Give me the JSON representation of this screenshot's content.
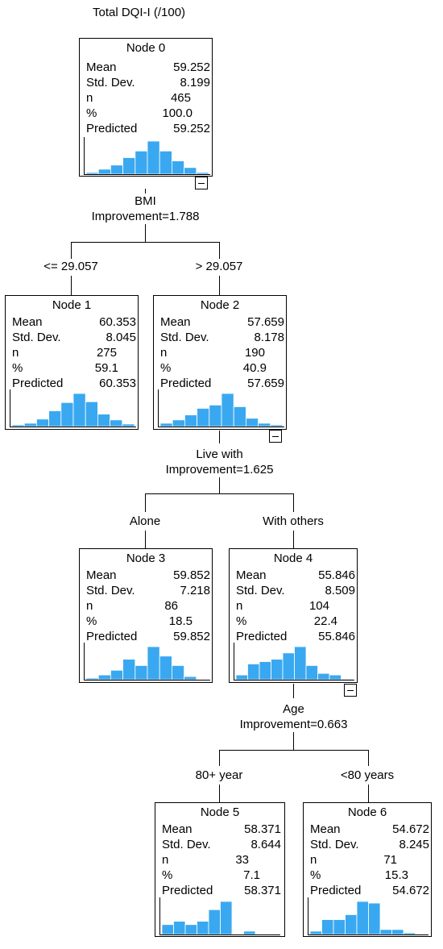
{
  "header": {
    "title": "Total DQI-I (/100)"
  },
  "labels": {
    "mean": "Mean",
    "sd": "Std. Dev.",
    "n": "n",
    "pct": "%",
    "pred": "Predicted"
  },
  "hist_color": "#3aa8f0",
  "nodes": [
    {
      "title": "Node 0",
      "mean": "59.252",
      "sd": "8.199",
      "n": "465",
      "pct": "100.0",
      "pred": "59.252",
      "hist": [
        2,
        6,
        11,
        20,
        28,
        40,
        28,
        16,
        8,
        2
      ]
    },
    {
      "title": "Node 1",
      "mean": "60.353",
      "sd": "8.045",
      "n": "275",
      "pct": "59.1",
      "pred": "60.353",
      "hist": [
        2,
        4,
        9,
        19,
        29,
        40,
        30,
        15,
        8,
        3
      ]
    },
    {
      "title": "Node 2",
      "mean": "57.659",
      "sd": "8.178",
      "n": "190",
      "pct": "40.9",
      "pred": "57.659",
      "hist": [
        4,
        8,
        14,
        22,
        26,
        40,
        24,
        10,
        4,
        2
      ]
    },
    {
      "title": "Node 3",
      "mean": "59.852",
      "sd": "7.218",
      "n": "86",
      "pct": "18.5",
      "pred": "59.852",
      "hist": [
        2,
        6,
        12,
        26,
        18,
        42,
        30,
        18,
        4,
        0
      ]
    },
    {
      "title": "Node 4",
      "mean": "55.846",
      "sd": "8.509",
      "n": "104",
      "pct": "22.4",
      "pred": "55.846",
      "hist": [
        6,
        20,
        23,
        26,
        34,
        42,
        18,
        8,
        6,
        1
      ]
    },
    {
      "title": "Node 5",
      "mean": "58.371",
      "sd": "8.644",
      "n": "33",
      "pct": "7.1",
      "pred": "58.371",
      "hist": [
        12,
        16,
        12,
        16,
        30,
        40,
        0,
        4,
        0,
        0
      ]
    },
    {
      "title": "Node 6",
      "mean": "54.672",
      "sd": "8.245",
      "n": "71",
      "pct": "15.3",
      "pred": "54.672",
      "hist": [
        4,
        18,
        18,
        24,
        40,
        38,
        6,
        6,
        2,
        0
      ]
    }
  ],
  "splits": [
    {
      "variable": "BMI",
      "improvement": "Improvement=1.788",
      "left_label": "<= 29.057",
      "right_label": "> 29.057"
    },
    {
      "variable": "Live with",
      "improvement": "Improvement=1.625",
      "left_label": "Alone",
      "right_label": "With others"
    },
    {
      "variable": "Age",
      "improvement": "Improvement=0.663",
      "left_label": "80+ year",
      "right_label": "<80 years"
    }
  ]
}
